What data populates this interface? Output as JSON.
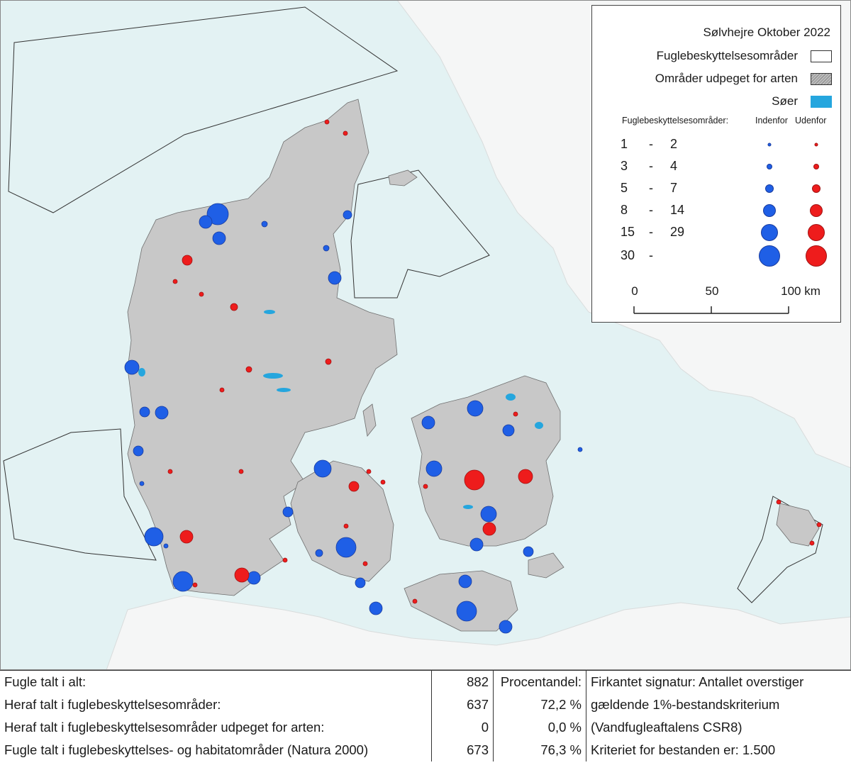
{
  "colors": {
    "sea": "#e3f2f3",
    "land": "#c8c8c8",
    "lake": "#25a6de",
    "inside": "#1f5fe6",
    "outside": "#ee1c1c"
  },
  "legend": {
    "title": "Sølvhejre Oktober 2022",
    "items": [
      {
        "label": "Fuglebeskyttelsesområder",
        "swatch": "white"
      },
      {
        "label": "Områder udpeget for arten",
        "swatch": "hatched"
      },
      {
        "label": "Søer",
        "swatch": "lake"
      }
    ],
    "size_header": "Fuglebeskyttelsesområder:",
    "inside_label": "Indenfor",
    "outside_label": "Udenfor",
    "size_classes": [
      {
        "from": "1",
        "dash": "-",
        "to": "2"
      },
      {
        "from": "3",
        "dash": "-",
        "to": "4"
      },
      {
        "from": "5",
        "dash": "-",
        "to": "7"
      },
      {
        "from": "8",
        "dash": "-",
        "to": "14"
      },
      {
        "from": "15",
        "dash": "-",
        "to": "29"
      },
      {
        "from": "30",
        "dash": "-",
        "to": ""
      }
    ],
    "scale_bar": {
      "labels": [
        "0",
        "50",
        "100 km"
      ]
    }
  },
  "stats": {
    "rows": [
      {
        "label": "Fugle talt i alt:",
        "count": "882",
        "pct": "Procentandel:",
        "note": "Firkantet signatur: Antallet overstiger"
      },
      {
        "label": "Heraf talt i fuglebeskyttelsesområder:",
        "count": "637",
        "pct": "72,2 %",
        "note": "gældende 1%-bestandskriterium"
      },
      {
        "label": "Heraf talt i fuglebeskyttelsesområder udpeget for arten:",
        "count": "0",
        "pct": "0,0 %",
        "note": "(Vandfugleaftalens CSR8)"
      },
      {
        "label": "Fugle talt i fuglebeskyttelses- og habitatområder (Natura 2000)",
        "count": "673",
        "pct": "76,3 %",
        "note": "Kriteriet for bestanden er: 1.500"
      }
    ]
  }
}
